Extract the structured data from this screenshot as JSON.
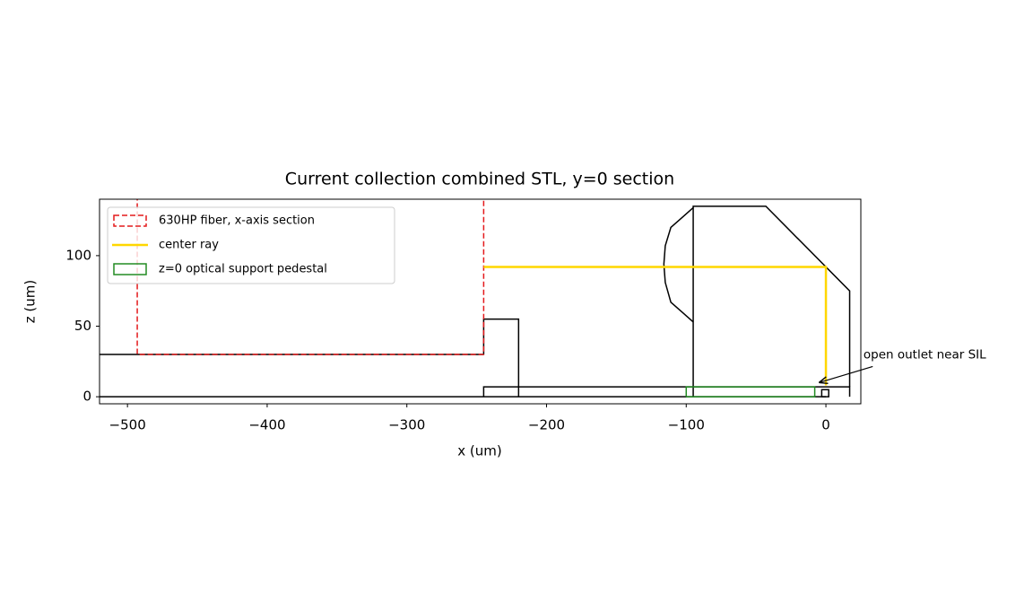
{
  "chart_data": {
    "type": "line",
    "title": "Current collection combined STL, y=0 section",
    "x_label": "x (um)",
    "y_label": "z (um)",
    "xlim": [
      -520,
      25
    ],
    "ylim": [
      -5,
      140
    ],
    "xticks": [
      {
        "value": -500,
        "label": "−500"
      },
      {
        "value": -400,
        "label": "−400"
      },
      {
        "value": -300,
        "label": "−300"
      },
      {
        "value": -200,
        "label": "−200"
      },
      {
        "value": -100,
        "label": "−100"
      },
      0
    ],
    "yticks": [
      0,
      50,
      100
    ],
    "legend": "upper left",
    "series": [
      {
        "color": "#000000",
        "kind": "line",
        "x": [
          -520,
          0
        ],
        "y": [
          0,
          0
        ]
      },
      {
        "color": "#000000",
        "kind": "line",
        "x": [
          -520,
          -245
        ],
        "y": [
          30,
          30
        ]
      },
      {
        "color": "#000000",
        "kind": "line",
        "x": [
          -245,
          -245,
          -220,
          -220
        ],
        "y": [
          30,
          55,
          55,
          0
        ]
      },
      {
        "color": "#000000",
        "kind": "line",
        "x": [
          -245,
          -245,
          17,
          17
        ],
        "y": [
          0,
          7,
          7,
          0
        ]
      },
      {
        "color": "#000000",
        "kind": "line",
        "x": [
          -95,
          -95,
          -43,
          17,
          17
        ],
        "y": [
          0,
          135,
          135,
          75,
          7
        ]
      },
      {
        "color": "#000000",
        "kind": "line",
        "x": [
          -95,
          -111,
          -115,
          -116,
          -115,
          -111,
          -95
        ],
        "y": [
          134,
          120,
          107,
          94,
          81,
          67,
          53
        ]
      },
      {
        "color": "#000000",
        "kind": "line",
        "x": [
          -3,
          -3,
          2,
          2,
          -3
        ],
        "y": [
          0,
          5,
          5,
          0,
          0
        ]
      },
      {
        "name": "630HP fiber, x-axis section",
        "color": "#e41a1c",
        "kind": "patch",
        "dashed": true,
        "x": [
          -493,
          -493,
          -245,
          -245
        ],
        "y": [
          160,
          30,
          30,
          160
        ]
      },
      {
        "name": "center ray",
        "color": "#ffd700",
        "kind": "line",
        "width": 2.5,
        "x": [
          -245,
          0,
          0
        ],
        "y": [
          92,
          92,
          8
        ]
      },
      {
        "name": "z=0 optical support pedestal",
        "color": "#228b22",
        "kind": "patch",
        "x": [
          -100,
          -8,
          -8,
          -100,
          -100
        ],
        "y": [
          0,
          0,
          7,
          7,
          0
        ]
      }
    ],
    "annotations": [
      {
        "text": "open outlet near SIL",
        "xy": [
          -5,
          10
        ]
      }
    ]
  }
}
